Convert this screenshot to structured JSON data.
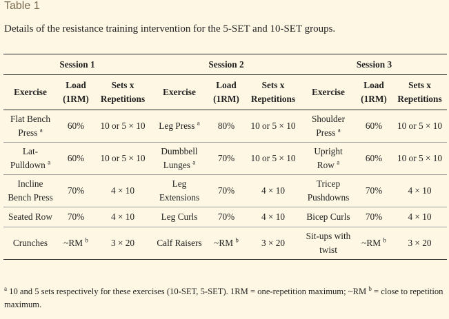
{
  "title": "Table 1",
  "caption": "Details of the resistance training intervention for the 5-SET and 10-SET groups.",
  "sessions": [
    "Session 1",
    "Session 2",
    "Session 3"
  ],
  "headers": {
    "exercise": "Exercise",
    "load_1": "Load",
    "load_2": "(1RM)",
    "sets_1": "Sets x",
    "sets_2": "Repetitions"
  },
  "rows": [
    {
      "c": [
        {
          "t": "Flat Bench Press",
          "sup": "a"
        },
        {
          "t": "60%"
        },
        {
          "t": "10 or 5 × 10"
        },
        {
          "t": "Leg Press",
          "sup": "a"
        },
        {
          "t": "80%"
        },
        {
          "t": "10 or 5 × 10"
        },
        {
          "t": "Shoulder Press",
          "sup": "a"
        },
        {
          "t": "60%"
        },
        {
          "t": "10 or 5 × 10"
        }
      ]
    },
    {
      "c": [
        {
          "t": "Lat-Pulldown",
          "sup": "a"
        },
        {
          "t": "60%"
        },
        {
          "t": "10 or 5 × 10"
        },
        {
          "t": "Dumbbell Lunges",
          "sup": "a"
        },
        {
          "t": "70%"
        },
        {
          "t": "10 or 5 × 10"
        },
        {
          "t": "Upright Row",
          "sup": "a"
        },
        {
          "t": "60%"
        },
        {
          "t": "10 or 5 × 10"
        }
      ]
    },
    {
      "c": [
        {
          "t": "Incline Bench Press"
        },
        {
          "t": "70%"
        },
        {
          "t": "4 × 10"
        },
        {
          "t": "Leg Extensions"
        },
        {
          "t": "70%"
        },
        {
          "t": "4 × 10"
        },
        {
          "t": "Tricep Pushdowns"
        },
        {
          "t": "70%"
        },
        {
          "t": "4 × 10"
        }
      ]
    },
    {
      "c": [
        {
          "t": "Seated Row"
        },
        {
          "t": "70%"
        },
        {
          "t": "4 × 10"
        },
        {
          "t": "Leg Curls"
        },
        {
          "t": "70%"
        },
        {
          "t": "4 × 10"
        },
        {
          "t": "Bicep Curls"
        },
        {
          "t": "70%"
        },
        {
          "t": "4 × 10"
        }
      ]
    },
    {
      "c": [
        {
          "t": "Crunches"
        },
        {
          "t": "~RM",
          "sup": "b"
        },
        {
          "t": "3 × 20"
        },
        {
          "t": "Calf Raisers"
        },
        {
          "t": "~RM",
          "sup": "b"
        },
        {
          "t": "3 × 20"
        },
        {
          "t": "Sit-ups with twist"
        },
        {
          "t": "~RM",
          "sup": "b"
        },
        {
          "t": "3 × 20"
        }
      ]
    }
  ],
  "footnote": {
    "a_mark": "a",
    "a_text": " 10 and 5 sets respectively for these exercises (10-SET, 5-SET). 1RM = one-repetition maximum; ~RM ",
    "b_mark": "b",
    "b_text": " = close to repetition maximum."
  }
}
